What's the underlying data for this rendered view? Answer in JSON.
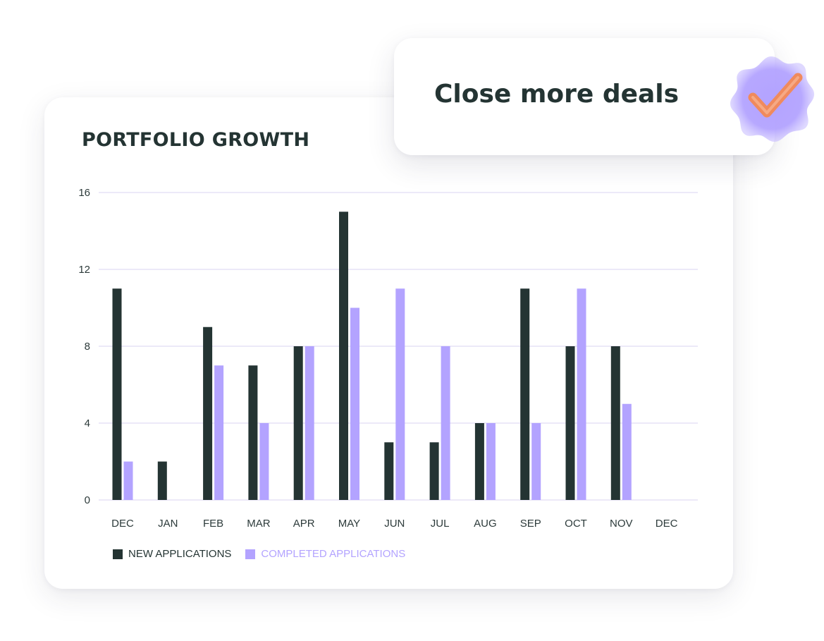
{
  "card": {
    "title": "PORTFOLIO GROWTH"
  },
  "callout": {
    "text": "Close more deals",
    "badge_icon": "checkmark-badge-icon",
    "badge_color": "#B3A3FF",
    "check_color": "#F08A5D"
  },
  "colors": {
    "new_applications": "#243433",
    "completed_applications": "#B3A3FF",
    "gridline": "#E6E2F5",
    "text": "#243433"
  },
  "chart_data": {
    "type": "bar",
    "title": "PORTFOLIO GROWTH",
    "xlabel": "",
    "ylabel": "",
    "categories": [
      "DEC",
      "JAN",
      "FEB",
      "MAR",
      "APR",
      "MAY",
      "JUN",
      "JUL",
      "AUG",
      "SEP",
      "OCT",
      "NOV",
      "DEC"
    ],
    "series": [
      {
        "name": "NEW APPLICATIONS",
        "color": "#243433",
        "values": [
          11,
          2,
          9,
          7,
          8,
          15,
          3,
          3,
          4,
          11,
          8,
          8,
          0
        ]
      },
      {
        "name": "COMPLETED APPLICATIONS",
        "color": "#B3A3FF",
        "values": [
          2,
          0,
          7,
          4,
          8,
          10,
          11,
          8,
          4,
          4,
          11,
          5,
          0
        ]
      }
    ],
    "yticks": [
      "0",
      "4",
      "8",
      "12",
      "16"
    ],
    "ylim": [
      0,
      16
    ],
    "grid": true,
    "legend": "bottom-left"
  }
}
